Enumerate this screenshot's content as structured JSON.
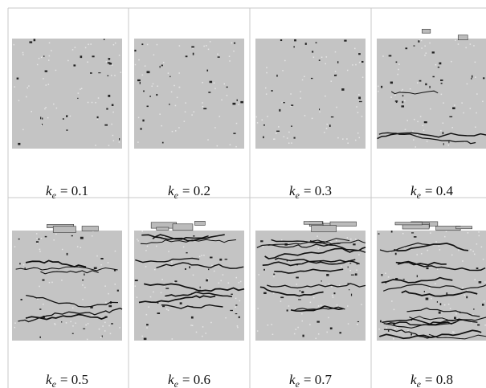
{
  "figure": {
    "panels": [
      {
        "variable": "k",
        "subscript": "e",
        "text": "= 0.1"
      },
      {
        "variable": "k",
        "subscript": "e",
        "text": "= 0.2"
      },
      {
        "variable": "k",
        "subscript": "e",
        "text": "= 0.3"
      },
      {
        "variable": "k",
        "subscript": "e",
        "text": "= 0.4"
      },
      {
        "variable": "k",
        "subscript": "e",
        "text": "= 0.5"
      },
      {
        "variable": "k",
        "subscript": "e",
        "text": "= 0.6"
      },
      {
        "variable": "k",
        "subscript": "e",
        "text": "= 0.7"
      },
      {
        "variable": "k",
        "subscript": "e",
        "text": "= 0.8"
      }
    ]
  }
}
